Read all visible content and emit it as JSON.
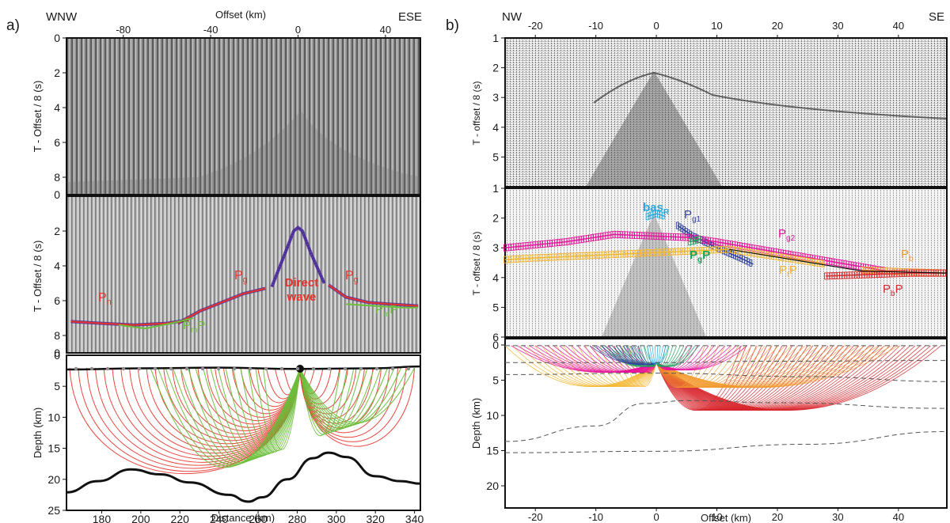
{
  "panel_a": {
    "tag": "a)",
    "dir_left": "WNW",
    "dir_right": "ESE",
    "top_axis_label": "Offset (km)",
    "offset_ticks": [
      "-80",
      "-40",
      "0",
      "40"
    ],
    "sec1_ylabel": "T - Offset / 8 (s)",
    "sec1_ticks": [
      "0",
      "2",
      "4",
      "6",
      "8"
    ],
    "sec1_bottom_tick": "0",
    "sec2_ylabel": "T - Offset / 8 (s)",
    "sec2_ticks": [
      "2",
      "4",
      "6",
      "8"
    ],
    "sec2_bottom_tick": "0",
    "depth_label": "Depth (km)",
    "depth_ticks": [
      "5",
      "10",
      "15",
      "20",
      "25"
    ],
    "distance_label": "Distance (km)",
    "distance_ticks": [
      "180",
      "200",
      "220",
      "240",
      "260",
      "280",
      "300",
      "320",
      "340"
    ],
    "phase_labels": {
      "pn_base": "P",
      "pn_sub": "n",
      "pg_left_base": "P",
      "pg_left_sub": "g",
      "pg_right_base": "P",
      "pg_right_sub": "g",
      "direct_1": "Direct",
      "direct_2": "wave",
      "pmp_left_base": "P",
      "pmp_left_sub": "m",
      "pmp_left_end": "P",
      "pmp_right_base": "P",
      "pmp_right_sub": "m",
      "pmp_right_end": "P"
    }
  },
  "panel_b": {
    "tag": "b)",
    "dir_left": "NW",
    "dir_right": "SE",
    "offset_ticks_top": [
      "-20",
      "-10",
      "0",
      "10",
      "20",
      "30",
      "40"
    ],
    "sec1_ylabel": "T - offset / 8 (s)",
    "sec1_ticks": [
      "1",
      "2",
      "3",
      "4",
      "5"
    ],
    "sec2_ylabel": "T - offset / 8 (s)",
    "sec2_ticks": [
      "1",
      "2",
      "3",
      "4",
      "5",
      "6"
    ],
    "depth_label": "Depth (km)",
    "depth_ticks": [
      "0",
      "5",
      "10",
      "15",
      "20"
    ],
    "offset_label": "Offset (km)",
    "offset_ticks_bottom": [
      "-20",
      "-10",
      "0",
      "10",
      "20",
      "30",
      "40"
    ],
    "phase_labels": {
      "bas_base": "bas",
      "bas_sub": "R",
      "pg1_base": "P",
      "pg1_sub": "g1",
      "pg2_base": "P",
      "pg2_sub": "g2",
      "pgp_base": "P",
      "pgp_sub": "g",
      "pgp_end": "P",
      "ptp_base": "P",
      "ptp_sub": "t",
      "ptp_end": "P",
      "pb_base": "P",
      "pb_sub": "b",
      "pbp_base": "P",
      "pbp_sub": "b",
      "pbp_end": "P"
    }
  },
  "colors": {
    "pick_red": "#e8332a",
    "pick_purple": "#4b2a9a",
    "pick_green": "#6cbf3c",
    "pg1_blue": "#2e3f9e",
    "pg2_magenta": "#e6139a",
    "bas_cyan": "#29a8e0",
    "pb_orange": "#f29a2e",
    "pt_yellow": "#f3b730",
    "pbp_red": "#d7262b",
    "pgp_teal": "#21a25a"
  },
  "chart_data": [
    {
      "type": "line",
      "panel": "a",
      "xlabel": "Offset (km)",
      "ylabel": "T - Offset / 8 (s)",
      "xlim": [
        -106,
        56
      ],
      "ylim": [
        0,
        9
      ],
      "series": [
        {
          "name": "Direct wave",
          "points": [
            [
              -12,
              5.2
            ],
            [
              -6,
              3.3
            ],
            [
              -2,
              2.0
            ],
            [
              0,
              1.8
            ],
            [
              2,
              2.0
            ],
            [
              6,
              3.3
            ],
            [
              12,
              5.0
            ]
          ]
        },
        {
          "name": "Pn",
          "points": [
            [
              -104,
              7.2
            ],
            [
              -90,
              7.3
            ],
            [
              -75,
              7.4
            ],
            [
              -60,
              7.3
            ],
            [
              -50,
              7.1
            ]
          ]
        },
        {
          "name": "Pg",
          "points": [
            [
              -55,
              7.3
            ],
            [
              -45,
              6.6
            ],
            [
              -35,
              6.1
            ],
            [
              -25,
              5.6
            ],
            [
              -15,
              5.3
            ]
          ]
        },
        {
          "name": "Pg",
          "points": [
            [
              14,
              5.1
            ],
            [
              22,
              5.8
            ],
            [
              32,
              6.1
            ],
            [
              42,
              6.2
            ],
            [
              55,
              6.3
            ]
          ]
        },
        {
          "name": "PmP",
          "points": [
            [
              -82,
              7.4
            ],
            [
              -70,
              7.6
            ],
            [
              -58,
              7.3
            ],
            [
              -48,
              7.0
            ]
          ]
        },
        {
          "name": "PmP",
          "points": [
            [
              22,
              6.2
            ],
            [
              35,
              6.3
            ],
            [
              48,
              6.4
            ],
            [
              55,
              6.4
            ]
          ]
        }
      ]
    },
    {
      "type": "line",
      "panel": "a",
      "xlabel": "Distance (km)",
      "ylabel": "Depth (km)",
      "xlim": [
        162,
        343
      ],
      "ylim": [
        25,
        0
      ],
      "series": [
        {
          "name": "",
          "points": [
            [
              162,
              2.3
            ],
            [
              200,
              2.1
            ],
            [
              240,
              2.0
            ],
            [
              280,
              2.2
            ],
            [
              320,
              2.1
            ],
            [
              343,
              1.8
            ]
          ]
        },
        {
          "name": "",
          "points": [
            [
              162,
              22.1
            ],
            [
              178,
              20.3
            ],
            [
              195,
              18.4
            ],
            [
              210,
              19.2
            ],
            [
              225,
              20.5
            ],
            [
              245,
              22.5
            ],
            [
              255,
              23.6
            ],
            [
              262,
              22.9
            ],
            [
              275,
              20.0
            ],
            [
              288,
              16.6
            ],
            [
              296,
              15.7
            ],
            [
              305,
              16.4
            ],
            [
              320,
              19.5
            ],
            [
              333,
              20.3
            ],
            [
              343,
              20.7
            ]
          ]
        }
      ]
    },
    {
      "type": "line",
      "panel": "b",
      "xlabel": "Offset (km)",
      "ylabel": "T - offset / 8 (s)",
      "xlim": [
        -25,
        48
      ],
      "ylim": [
        1,
        6
      ],
      "series": [
        {
          "name": "basR",
          "points": [
            [
              -1.5,
              1.95
            ],
            [
              0,
              1.85
            ],
            [
              1.5,
              1.95
            ]
          ]
        },
        {
          "name": "Pg1",
          "points": [
            [
              3.5,
              2.25
            ],
            [
              6,
              2.6
            ],
            [
              10,
              3.0
            ],
            [
              14,
              3.35
            ],
            [
              16,
              3.55
            ]
          ]
        },
        {
          "name": "Pg2",
          "points": [
            [
              -25,
              3.0
            ],
            [
              -15,
              2.8
            ],
            [
              -7,
              2.55
            ],
            [
              5,
              2.65
            ],
            [
              10,
              2.8
            ],
            [
              20,
              3.15
            ],
            [
              30,
              3.5
            ],
            [
              38,
              3.78
            ]
          ]
        },
        {
          "name": "PgP",
          "points": [
            [
              5.5,
              2.8
            ],
            [
              7.5,
              2.7
            ]
          ]
        },
        {
          "name": "PtP",
          "points": [
            [
              -25,
              3.4
            ],
            [
              -21,
              3.35
            ],
            [
              12,
              3.05
            ],
            [
              20,
              3.3
            ],
            [
              28,
              3.55
            ]
          ]
        },
        {
          "name": "Pb",
          "points": [
            [
              34,
              3.75
            ],
            [
              40,
              3.8
            ],
            [
              48,
              3.85
            ]
          ]
        },
        {
          "name": "PbP",
          "points": [
            [
              28,
              3.95
            ],
            [
              35,
              3.9
            ],
            [
              42,
              3.85
            ],
            [
              48,
              3.85
            ]
          ]
        }
      ]
    },
    {
      "type": "line",
      "panel": "b",
      "xlabel": "Offset (km)",
      "ylabel": "Depth (km)",
      "xlim": [
        -25,
        48
      ],
      "ylim": [
        20,
        0
      ],
      "series": [
        {
          "name": "",
          "points": [
            [
              -25,
              0.1
            ],
            [
              48,
              0.1
            ]
          ]
        },
        {
          "name": "",
          "points": [
            [
              -25,
              2.5
            ],
            [
              0,
              2.5
            ],
            [
              20,
              2.3
            ],
            [
              48,
              2.2
            ]
          ]
        },
        {
          "name": "",
          "points": [
            [
              -25,
              4.2
            ],
            [
              0,
              4.0
            ],
            [
              25,
              4.5
            ],
            [
              48,
              5.2
            ]
          ]
        },
        {
          "name": "",
          "points": [
            [
              -25,
              13.7
            ],
            [
              -10,
              11.5
            ],
            [
              -2,
              8.3
            ],
            [
              5,
              7.9
            ],
            [
              20,
              8.2
            ],
            [
              48,
              9.0
            ]
          ]
        },
        {
          "name": "",
          "points": [
            [
              -25,
              15.3
            ],
            [
              0,
              15.1
            ],
            [
              25,
              14.1
            ],
            [
              48,
              12.3
            ]
          ]
        }
      ]
    }
  ]
}
